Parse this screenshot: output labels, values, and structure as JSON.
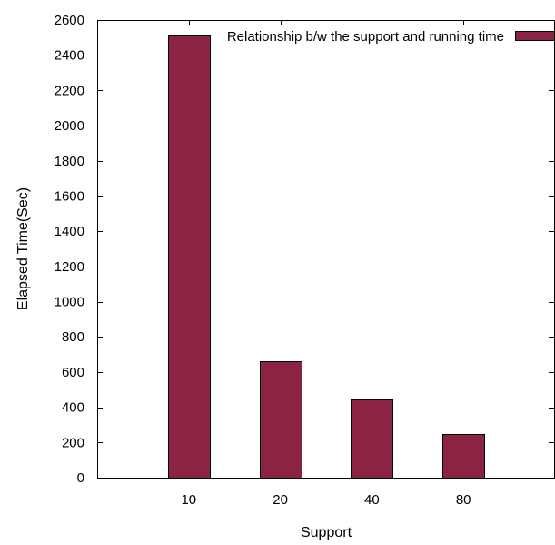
{
  "chart_data": {
    "type": "bar",
    "title": "",
    "xlabel": "Support",
    "ylabel": "Elapsed Time(Sec)",
    "categories": [
      "10",
      "20",
      "40",
      "80"
    ],
    "series": [
      {
        "name": "Relationship b/w the support and running time",
        "values": [
          2510,
          660,
          445,
          250
        ],
        "color": "#8b2342"
      }
    ],
    "ylim": [
      0,
      2600
    ],
    "yticks": [
      0,
      200,
      400,
      600,
      800,
      1000,
      1200,
      1400,
      1600,
      1800,
      2000,
      2200,
      2400,
      2600
    ],
    "grid": false,
    "legend_position": "top-right"
  }
}
